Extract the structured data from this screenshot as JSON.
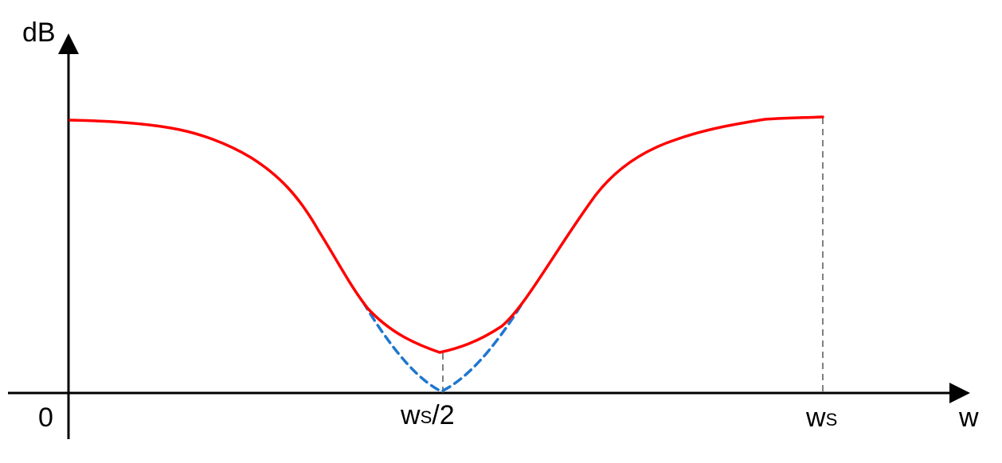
{
  "axes": {
    "y_label": "dB",
    "x_label": "w",
    "origin_label": "0"
  },
  "ticks": {
    "half_sampling": {
      "main": "w",
      "sub": "S",
      "suffix": "/2"
    },
    "sampling": {
      "main": "w",
      "sub": "S"
    }
  },
  "colors": {
    "response_curve": "#ff0000",
    "ideal_curve": "#1f77d0",
    "axes": "#000000"
  }
}
